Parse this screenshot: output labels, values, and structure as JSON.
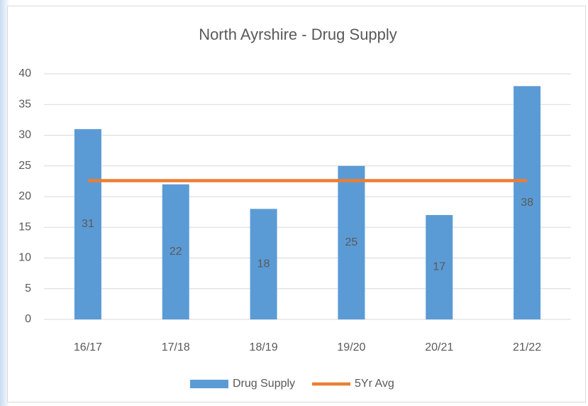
{
  "chart_data": {
    "type": "bar",
    "title": "North Ayrshire - Drug Supply",
    "categories": [
      "16/17",
      "17/18",
      "18/19",
      "19/20",
      "20/21",
      "21/22"
    ],
    "series": [
      {
        "name": "Drug Supply",
        "type": "bar",
        "color": "#5b9bd5",
        "values": [
          31,
          22,
          18,
          25,
          17,
          38
        ]
      },
      {
        "name": "5Yr Avg",
        "type": "line",
        "color": "#ed7d31",
        "values": [
          22.6,
          22.6,
          22.6,
          22.6,
          22.6,
          22.6
        ]
      }
    ],
    "ylim": [
      0,
      40
    ],
    "yticks": [
      0,
      5,
      10,
      15,
      20,
      25,
      30,
      35,
      40
    ],
    "grid": true,
    "legend": "bottom",
    "data_labels": true
  }
}
